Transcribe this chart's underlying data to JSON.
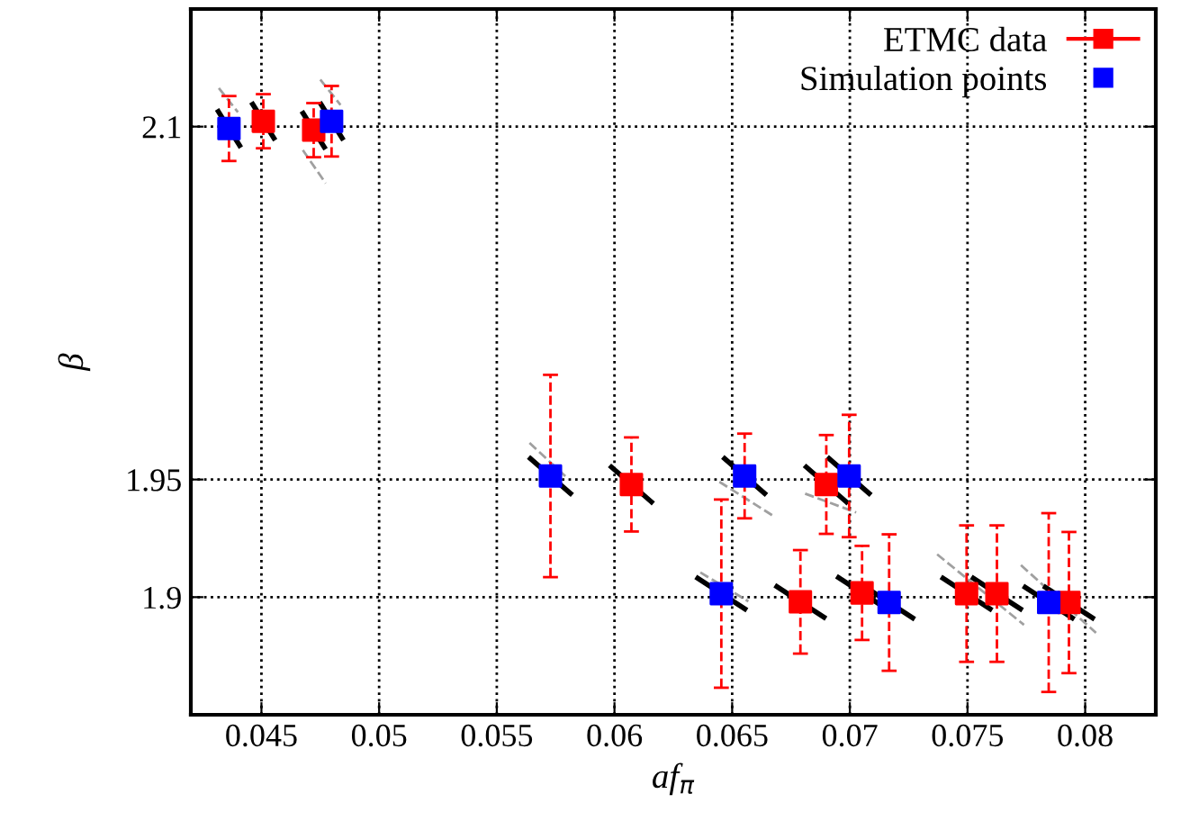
{
  "chart_data": {
    "type": "scatter",
    "xlabel": "af$_{π}$",
    "ylabel": "β",
    "xlim": [
      0.042,
      0.083
    ],
    "ylim": [
      1.85,
      2.15
    ],
    "xticks": [
      0.045,
      0.05,
      0.055,
      0.06,
      0.065,
      0.07,
      0.075,
      0.08
    ],
    "yticks": [
      1.9,
      1.95,
      2.1
    ],
    "grid": true,
    "legend": "top right",
    "series": [
      {
        "type": "line",
        "color": "#a0a0a0",
        "line_style": "dashed",
        "x": [
          0.04319,
          0.044,
          null,
          0.04676,
          0.04773,
          null,
          0.0475,
          0.04836,
          null,
          0.05639,
          0.05804,
          null,
          0.06446,
          0.06683,
          null,
          0.0681,
          0.07027,
          null,
          0.06365,
          0.06569,
          null,
          0.07371,
          0.0774,
          null,
          0.07727,
          0.08046
        ],
        "values": [
          2.1164,
          2.1061,
          null,
          2.09,
          2.0759,
          null,
          2.12,
          2.1092,
          null,
          1.9656,
          1.9502,
          null,
          1.949,
          1.934,
          null,
          1.944,
          1.936,
          null,
          1.9105,
          1.8982,
          null,
          1.9182,
          1.8882,
          null,
          1.9136,
          1.8848
        ]
      },
      {
        "type": "line",
        "color": "#000000",
        "line_style": "solid",
        "x": [
          0.04317,
          0.04407,
          null,
          0.04463,
          0.04553,
          null,
          0.04677,
          0.04767,
          null,
          0.04753,
          0.04843,
          null,
          0.05643,
          0.05813,
          null,
          0.05987,
          0.06157,
          null,
          0.06468,
          0.06638,
          null,
          0.06815,
          0.06985,
          null,
          0.06912,
          0.07082,
          null,
          0.06354,
          0.06554,
          null,
          0.0669,
          0.0689,
          null,
          0.06952,
          0.07152,
          null,
          0.07067,
          0.07267,
          null,
          0.07396,
          0.07596,
          null,
          0.07525,
          0.07725,
          null,
          0.07745,
          0.07945,
          null,
          0.07831,
          0.08031
        ],
        "values": [
          2.1064,
          2.092,
          null,
          2.1095,
          2.0951,
          null,
          2.1057,
          2.0913,
          null,
          2.1095,
          2.0951,
          null,
          1.9589,
          1.9441,
          null,
          1.9553,
          1.9405,
          null,
          1.9589,
          1.9441,
          null,
          1.9553,
          1.9405,
          null,
          1.9589,
          1.9441,
          null,
          1.908,
          1.895,
          null,
          1.9045,
          1.8915,
          null,
          1.9083,
          1.8953,
          null,
          1.9042,
          1.8912,
          null,
          1.908,
          1.895,
          null,
          1.908,
          1.895,
          null,
          1.9042,
          1.8912,
          null,
          1.9042,
          1.8912
        ]
      },
      {
        "name": "ETMC data",
        "color": "#ff0000",
        "marker": "square",
        "line_style": "dashed",
        "x": [
          0.04508,
          0.04722,
          0.06072,
          0.069,
          0.0679,
          0.07052,
          0.07496,
          0.07625,
          0.07931
        ],
        "values": [
          2.1023,
          2.0985,
          1.9479,
          1.9479,
          1.898,
          1.9018,
          1.9015,
          1.9015,
          1.8977
        ],
        "errors": [
          0.0115,
          0.0115,
          0.02,
          0.021,
          0.022,
          0.02,
          0.029,
          0.029,
          0.03
        ]
      },
      {
        "name": "Simulation points",
        "color": "#0000ff",
        "marker": "square",
        "line_style": "dashed",
        "x": [
          0.04362,
          0.04798,
          0.05728,
          0.06553,
          0.06997,
          0.06454,
          0.07167,
          0.07845
        ],
        "values": [
          2.0992,
          2.1023,
          1.9515,
          1.9515,
          1.9515,
          1.9015,
          1.8977,
          1.8977
        ],
        "errors": [
          0.0138,
          0.015,
          0.043,
          0.018,
          0.026,
          0.04,
          0.029,
          0.038
        ]
      }
    ]
  }
}
